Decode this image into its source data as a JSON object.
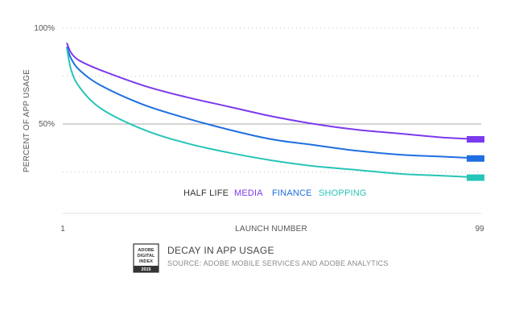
{
  "chart_data": {
    "type": "line",
    "title": "DECAY IN APP USAGE",
    "source": "SOURCE: ADOBE MOBILE SERVICES AND ADOBE ANALYTICS",
    "xlabel": "LAUNCH NUMBER",
    "ylabel": "PERCENT OF APP USAGE",
    "xlim": [
      1,
      99
    ],
    "ylim": [
      0,
      100
    ],
    "y_ticks": [
      {
        "value": 100,
        "label": "100%"
      },
      {
        "value": 50,
        "label": "50%"
      }
    ],
    "x_ticks": [
      {
        "value": 1,
        "label": "1"
      },
      {
        "value": 99,
        "label": "99"
      }
    ],
    "legend_title": "HALF LIFE",
    "legend_placement": "bottom-center",
    "series": [
      {
        "name": "MEDIA",
        "color": "#7c3aed",
        "x": [
          2,
          3,
          5,
          10,
          20,
          30,
          40,
          50,
          60,
          70,
          80,
          90,
          99
        ],
        "y": [
          92,
          87,
          83,
          78,
          70,
          64,
          59,
          54,
          50,
          47,
          45,
          43,
          42
        ]
      },
      {
        "name": "FINANCE",
        "color": "#1f6fe0",
        "x": [
          2,
          3,
          5,
          10,
          20,
          30,
          40,
          50,
          60,
          70,
          80,
          90,
          99
        ],
        "y": [
          90,
          84,
          78,
          70,
          60,
          53,
          47,
          42,
          39,
          36,
          34,
          33,
          32
        ]
      },
      {
        "name": "SHOPPING",
        "color": "#27c4b8",
        "x": [
          2,
          3,
          5,
          10,
          20,
          30,
          40,
          50,
          60,
          70,
          80,
          90,
          99
        ],
        "y": [
          89,
          78,
          69,
          58,
          47,
          40,
          35,
          31,
          28,
          26,
          24,
          23,
          22
        ]
      }
    ]
  },
  "logo": {
    "line1": "ADOBE",
    "line2": "DIGITAL",
    "line3": "INDEX",
    "year": "2015"
  }
}
